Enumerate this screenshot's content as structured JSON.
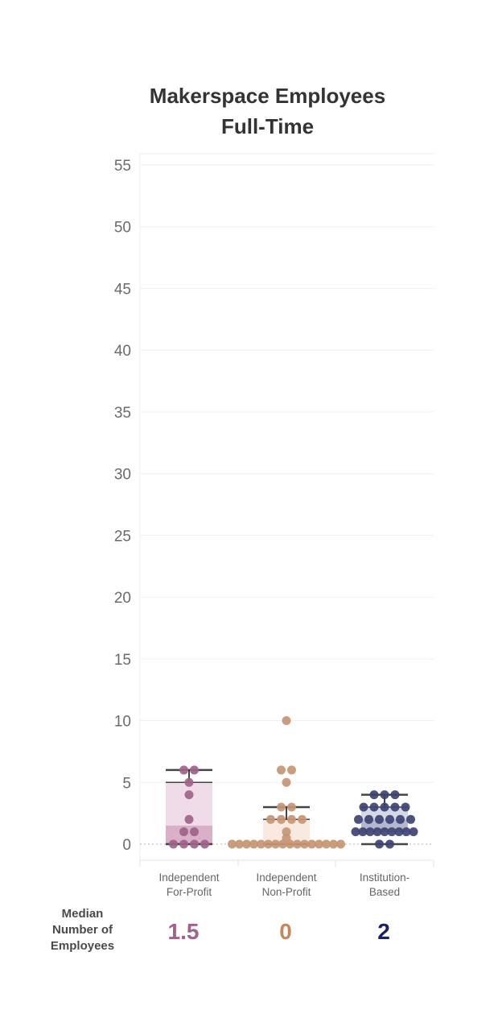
{
  "chart_data": {
    "type": "box",
    "title_lines": [
      "Makerspace Employees",
      "Full-Time"
    ],
    "y_ticks": [
      0,
      5,
      10,
      15,
      20,
      25,
      30,
      35,
      40,
      45,
      50,
      55
    ],
    "ylim": [
      -1,
      55
    ],
    "categories": [
      {
        "name_lines": [
          "Independent",
          "For-Profit"
        ],
        "color": "#a0628a",
        "box_color": "#efdce8",
        "box_mid_color": "#d9b0c7",
        "min": 0,
        "q1": 0,
        "median": 1.5,
        "q3": 5,
        "max": 6,
        "points": [
          6,
          6,
          5,
          4,
          2,
          1,
          1,
          0,
          0,
          0,
          0
        ]
      },
      {
        "name_lines": [
          "Independent",
          "Non-Profit"
        ],
        "color": "#c79574",
        "box_color": "#f8eae0",
        "box_mid_color": "#f8eae0",
        "min": 0,
        "q1": 0,
        "median": 0,
        "q3": 2,
        "max": 3,
        "points": [
          10,
          6,
          6,
          5,
          3,
          3,
          2,
          2,
          2,
          2,
          1,
          0.5,
          0,
          0,
          0,
          0,
          0,
          0,
          0,
          0,
          0,
          0,
          0,
          0,
          0,
          0,
          0,
          0
        ]
      },
      {
        "name_lines": [
          "Institution-",
          "Based"
        ],
        "color": "#3d4272",
        "box_color": "#d5d8e6",
        "box_mid_color": "#b3b8d0",
        "min": 0,
        "q1": 1,
        "median": 2,
        "q3": 3,
        "max": 4,
        "points": [
          4,
          4,
          4,
          3,
          3,
          3,
          3,
          3,
          2,
          2,
          2,
          2,
          2,
          2,
          1,
          1,
          1,
          1,
          1,
          1,
          1,
          1,
          1,
          0,
          0
        ]
      }
    ]
  },
  "median_row": {
    "label_lines": [
      "Median",
      "Number of",
      "Employees"
    ],
    "values": [
      {
        "text": "1.5",
        "color": "#a0628a"
      },
      {
        "text": "0",
        "color": "#c4885f"
      },
      {
        "text": "2",
        "color": "#1b2160"
      }
    ]
  }
}
